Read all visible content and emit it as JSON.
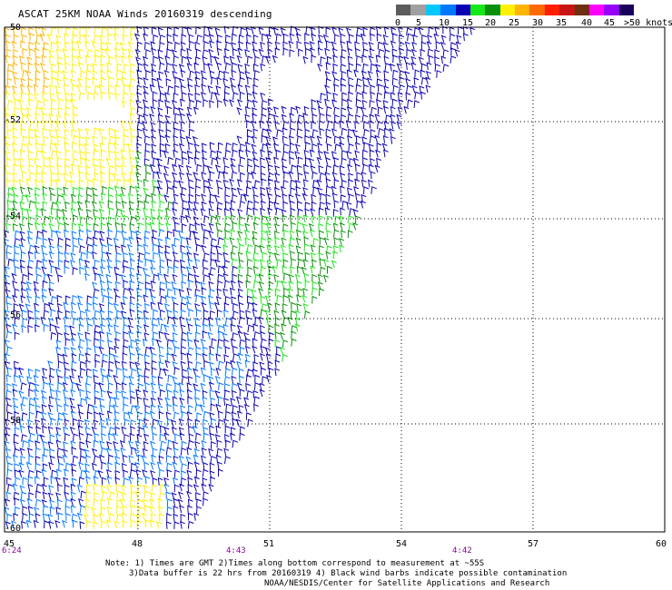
{
  "header": {
    "title": "ASCAT 25KM NOAA Winds 20160319 descending"
  },
  "legend": {
    "colors": [
      "#5c5c5c",
      "#a0a0a0",
      "#00c8ff",
      "#0077ff",
      "#0a00b4",
      "#17e817",
      "#0a8f0a",
      "#fff000",
      "#ffb400",
      "#ff6a00",
      "#ff1e00",
      "#c81414",
      "#6e3010",
      "#ff00ff",
      "#9600ff",
      "#1a005a"
    ],
    "labels": [
      "0",
      "5",
      "10",
      "15",
      "20",
      "25",
      "30",
      "35",
      "40",
      "45",
      ">50 knots"
    ]
  },
  "map": {
    "lat_labels": [
      "-50",
      "-52",
      "-54",
      "-56",
      "-58",
      "-60"
    ],
    "lon_labels": [
      "45",
      "48",
      "51",
      "54",
      "57",
      "60"
    ],
    "time_labels": [
      "6:24",
      "4:43",
      "4:42"
    ]
  },
  "notes": {
    "line1": "Note: 1) Times are GMT 2)Times along bottom correspond to measurement at ~55S",
    "line2": "3)Data buffer is 22 hrs from 20160319 4) Black wind barbs indicate possible contamination",
    "line3": "NOAA/NESDIS/Center for Satellite Applications and Research"
  }
}
